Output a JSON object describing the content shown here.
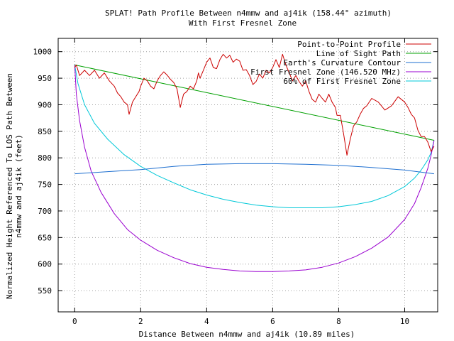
{
  "chart_data": {
    "type": "line",
    "title_line1": "SPLAT! Path Profile Between n4mmw and aj4ik (158.44° azimuth)",
    "title_line2": "With First Fresnel Zone",
    "xlabel": "Distance Between n4mmw and aj4ik (10.89 miles)",
    "ylabel_line1": "Normalized Height Referenced To LOS Path Between",
    "ylabel_line2": "n4mmw and aj4ik (feet)",
    "xlim": [
      -0.5,
      11.0
    ],
    "ylim": [
      510,
      1025
    ],
    "x_ticks": [
      0,
      2,
      4,
      6,
      8,
      10
    ],
    "y_ticks": [
      550,
      600,
      650,
      700,
      750,
      800,
      850,
      900,
      950,
      1000
    ],
    "grid": true,
    "legend_position": "top-right",
    "colors": {
      "profile": "#cc0000",
      "los": "#00a000",
      "earth": "#1e6fd0",
      "fresnel": "#9a00d0",
      "fresnel60": "#00c8d8"
    },
    "series": [
      {
        "name": "Point-to-Point Profile",
        "key": "profile",
        "points": [
          [
            0,
            970
          ],
          [
            0.05,
            975
          ],
          [
            0.15,
            955
          ],
          [
            0.3,
            965
          ],
          [
            0.45,
            955
          ],
          [
            0.6,
            965
          ],
          [
            0.75,
            950
          ],
          [
            0.9,
            960
          ],
          [
            1.05,
            945
          ],
          [
            1.2,
            935
          ],
          [
            1.3,
            922
          ],
          [
            1.4,
            915
          ],
          [
            1.5,
            905
          ],
          [
            1.6,
            900
          ],
          [
            1.65,
            882
          ],
          [
            1.75,
            905
          ],
          [
            1.85,
            915
          ],
          [
            1.95,
            925
          ],
          [
            2.0,
            935
          ],
          [
            2.1,
            950
          ],
          [
            2.2,
            945
          ],
          [
            2.3,
            935
          ],
          [
            2.4,
            930
          ],
          [
            2.5,
            945
          ],
          [
            2.6,
            955
          ],
          [
            2.7,
            962
          ],
          [
            2.8,
            956
          ],
          [
            2.9,
            948
          ],
          [
            3.0,
            942
          ],
          [
            3.1,
            930
          ],
          [
            3.2,
            895
          ],
          [
            3.3,
            920
          ],
          [
            3.4,
            925
          ],
          [
            3.5,
            935
          ],
          [
            3.6,
            930
          ],
          [
            3.7,
            945
          ],
          [
            3.75,
            960
          ],
          [
            3.8,
            950
          ],
          [
            3.9,
            965
          ],
          [
            4.0,
            980
          ],
          [
            4.1,
            988
          ],
          [
            4.2,
            970
          ],
          [
            4.3,
            968
          ],
          [
            4.4,
            985
          ],
          [
            4.5,
            995
          ],
          [
            4.6,
            988
          ],
          [
            4.7,
            993
          ],
          [
            4.8,
            980
          ],
          [
            4.9,
            986
          ],
          [
            5.0,
            982
          ],
          [
            5.1,
            965
          ],
          [
            5.2,
            966
          ],
          [
            5.3,
            955
          ],
          [
            5.4,
            938
          ],
          [
            5.5,
            944
          ],
          [
            5.6,
            958
          ],
          [
            5.7,
            950
          ],
          [
            5.8,
            965
          ],
          [
            5.9,
            960
          ],
          [
            6.0,
            970
          ],
          [
            6.1,
            985
          ],
          [
            6.2,
            970
          ],
          [
            6.3,
            995
          ],
          [
            6.4,
            975
          ],
          [
            6.5,
            960
          ],
          [
            6.6,
            945
          ],
          [
            6.7,
            955
          ],
          [
            6.8,
            944
          ],
          [
            6.9,
            935
          ],
          [
            7.0,
            945
          ],
          [
            7.1,
            925
          ],
          [
            7.2,
            910
          ],
          [
            7.3,
            905
          ],
          [
            7.4,
            920
          ],
          [
            7.5,
            912
          ],
          [
            7.6,
            905
          ],
          [
            7.7,
            920
          ],
          [
            7.8,
            905
          ],
          [
            7.9,
            895
          ],
          [
            7.95,
            880
          ],
          [
            8.05,
            880
          ],
          [
            8.15,
            845
          ],
          [
            8.25,
            805
          ],
          [
            8.35,
            835
          ],
          [
            8.45,
            860
          ],
          [
            8.55,
            868
          ],
          [
            8.65,
            882
          ],
          [
            8.75,
            893
          ],
          [
            8.85,
            898
          ],
          [
            9.0,
            912
          ],
          [
            9.2,
            905
          ],
          [
            9.4,
            890
          ],
          [
            9.6,
            898
          ],
          [
            9.8,
            915
          ],
          [
            10.0,
            905
          ],
          [
            10.1,
            895
          ],
          [
            10.2,
            882
          ],
          [
            10.3,
            875
          ],
          [
            10.4,
            852
          ],
          [
            10.5,
            840
          ],
          [
            10.6,
            840
          ],
          [
            10.7,
            830
          ],
          [
            10.8,
            812
          ],
          [
            10.89,
            822
          ]
        ]
      },
      {
        "name": "Line of Sight Path",
        "key": "los",
        "points": [
          [
            0,
            975
          ],
          [
            10.89,
            833
          ]
        ]
      },
      {
        "name": "Earth's Curvature Contour",
        "key": "earth",
        "points": [
          [
            0,
            770
          ],
          [
            1,
            774
          ],
          [
            2,
            778
          ],
          [
            3,
            784
          ],
          [
            4,
            788
          ],
          [
            5,
            789
          ],
          [
            6,
            789
          ],
          [
            7,
            788
          ],
          [
            8,
            786
          ],
          [
            9,
            782
          ],
          [
            10,
            777
          ],
          [
            10.89,
            770
          ]
        ]
      },
      {
        "name": "First Fresnel Zone (146.520 MHz)",
        "key": "fresnel",
        "points": [
          [
            0,
            975
          ],
          [
            0.05,
            920
          ],
          [
            0.15,
            870
          ],
          [
            0.3,
            820
          ],
          [
            0.5,
            775
          ],
          [
            0.8,
            735
          ],
          [
            1.2,
            695
          ],
          [
            1.6,
            665
          ],
          [
            2.0,
            645
          ],
          [
            2.5,
            626
          ],
          [
            3.0,
            612
          ],
          [
            3.5,
            601
          ],
          [
            4.0,
            594
          ],
          [
            4.5,
            590
          ],
          [
            5.0,
            587
          ],
          [
            5.5,
            586
          ],
          [
            6.0,
            586
          ],
          [
            6.5,
            587
          ],
          [
            7.0,
            589
          ],
          [
            7.5,
            594
          ],
          [
            8.0,
            602
          ],
          [
            8.5,
            614
          ],
          [
            9.0,
            630
          ],
          [
            9.5,
            651
          ],
          [
            10.0,
            684
          ],
          [
            10.3,
            714
          ],
          [
            10.5,
            744
          ],
          [
            10.7,
            780
          ],
          [
            10.8,
            805
          ],
          [
            10.89,
            833
          ]
        ]
      },
      {
        "name": "60% of First Fresnel Zone",
        "key": "fresnel60",
        "points": [
          [
            0,
            975
          ],
          [
            0.1,
            940
          ],
          [
            0.3,
            900
          ],
          [
            0.6,
            865
          ],
          [
            1.0,
            835
          ],
          [
            1.5,
            806
          ],
          [
            2.0,
            784
          ],
          [
            2.5,
            767
          ],
          [
            3.0,
            753
          ],
          [
            3.5,
            740
          ],
          [
            4.0,
            730
          ],
          [
            4.5,
            722
          ],
          [
            5.0,
            716
          ],
          [
            5.5,
            711
          ],
          [
            6.0,
            708
          ],
          [
            6.5,
            706
          ],
          [
            7.0,
            706
          ],
          [
            7.5,
            706
          ],
          [
            8.0,
            708
          ],
          [
            8.5,
            712
          ],
          [
            9.0,
            718
          ],
          [
            9.5,
            729
          ],
          [
            10.0,
            746
          ],
          [
            10.3,
            762
          ],
          [
            10.5,
            777
          ],
          [
            10.7,
            796
          ],
          [
            10.8,
            810
          ],
          [
            10.89,
            833
          ]
        ]
      }
    ]
  }
}
